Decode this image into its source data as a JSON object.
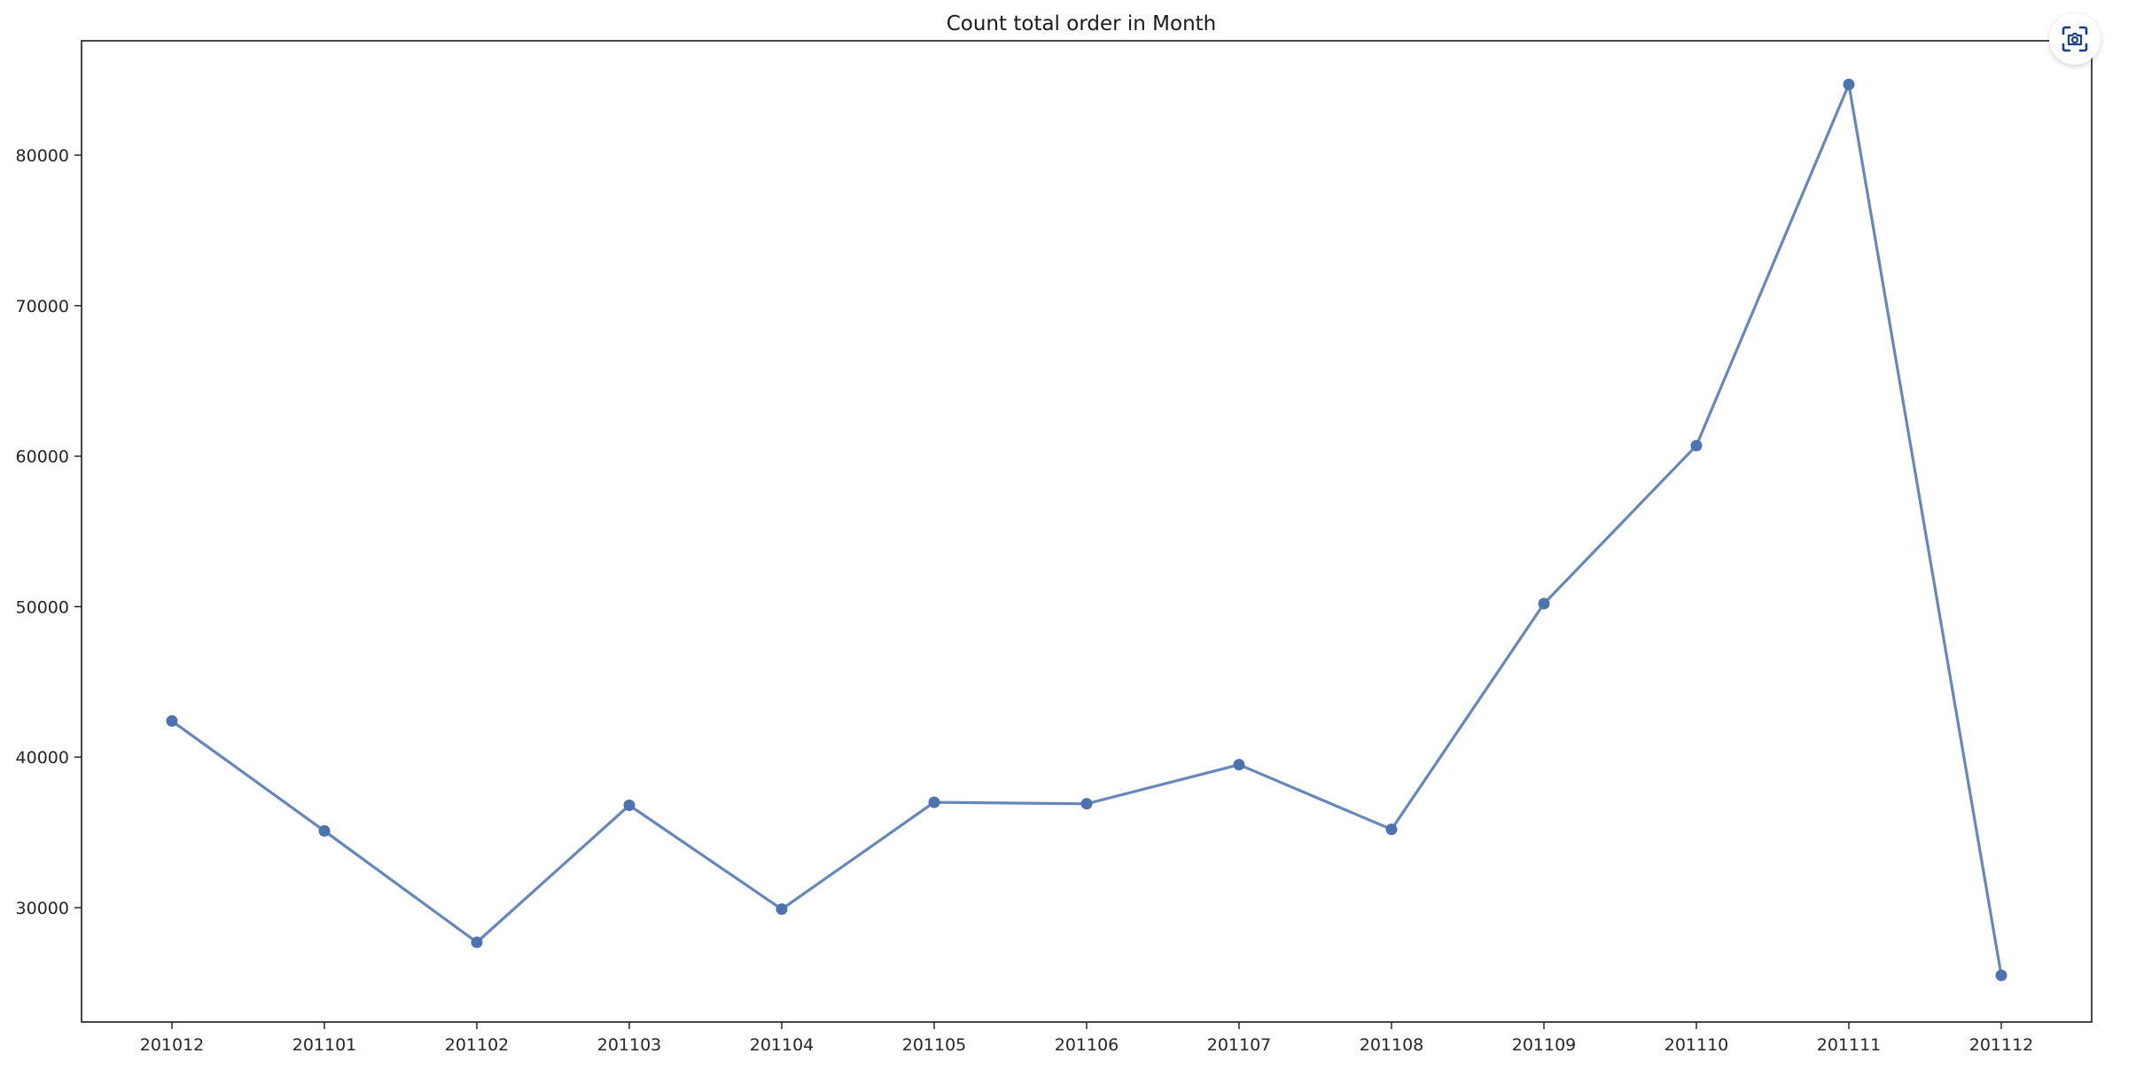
{
  "chart_data": {
    "type": "line",
    "title": "Count total order in Month",
    "xlabel": "",
    "ylabel": "",
    "categories": [
      "201012",
      "201101",
      "201102",
      "201103",
      "201104",
      "201105",
      "201106",
      "201107",
      "201108",
      "201109",
      "201110",
      "201111",
      "201112"
    ],
    "series": [
      {
        "values": [
          42400,
          35100,
          27700,
          36800,
          29900,
          37000,
          36900,
          39500,
          35200,
          50200,
          60700,
          84700,
          25500
        ],
        "color": "#4c72b0",
        "marker": "circle"
      }
    ],
    "ylim": [
      22400,
      87600
    ],
    "yticks": [
      30000,
      40000,
      50000,
      60000,
      70000,
      80000
    ],
    "ytick_labels": [
      "30000",
      "40000",
      "50000",
      "60000",
      "70000",
      "80000"
    ],
    "grid": false,
    "legend": "none"
  },
  "toolbar": {
    "screenshot_icon": "screen-capture-icon"
  }
}
